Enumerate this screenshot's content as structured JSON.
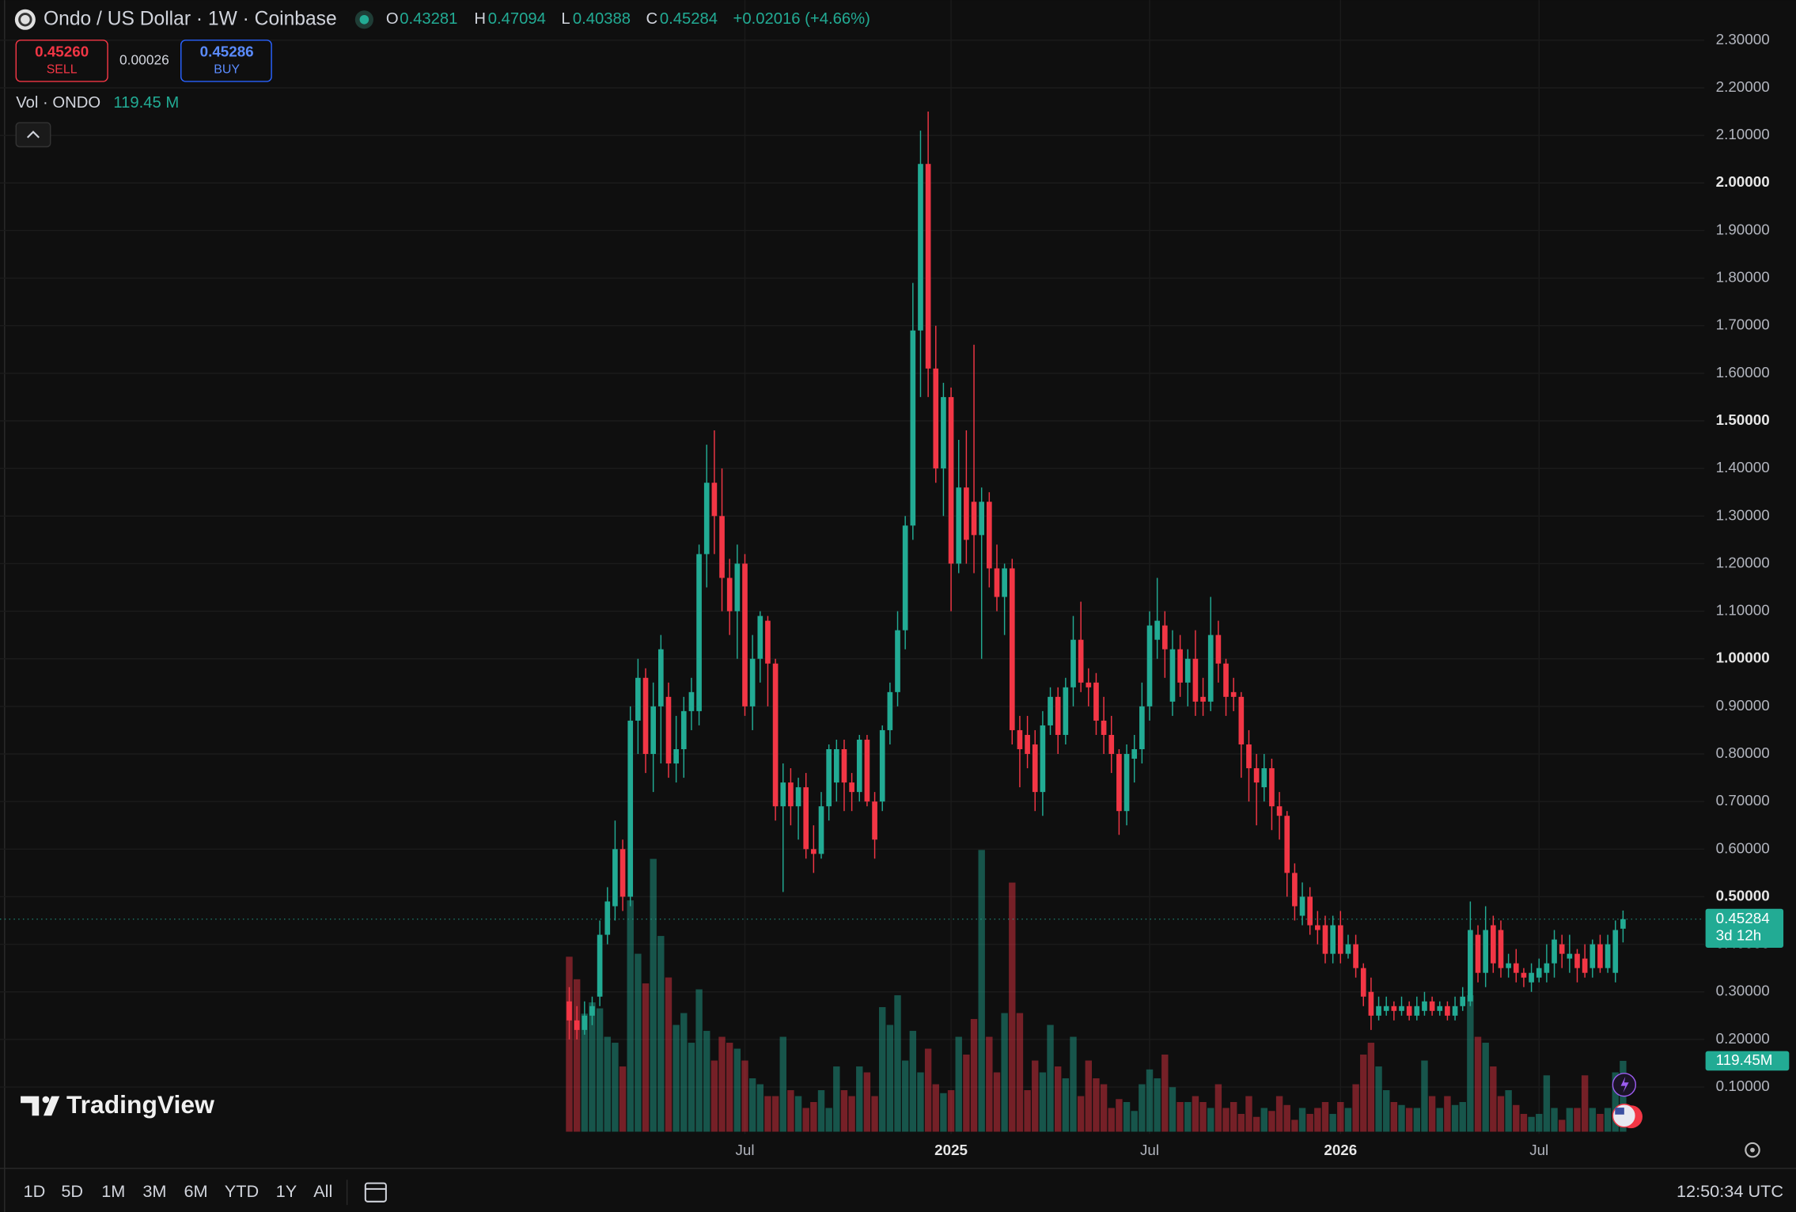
{
  "header": {
    "symbol": "Ondo / US Dollar · 1W · Coinbase",
    "o_label": "O",
    "o": "0.43281",
    "h_label": "H",
    "h": "0.47094",
    "l_label": "L",
    "l": "0.40388",
    "c_label": "C",
    "c": "0.45284",
    "change": "+0.02016 (+4.66%)",
    "sell_price": "0.45260",
    "sell": "SELL",
    "spread": "0.00026",
    "buy_price": "0.45286",
    "buy": "BUY",
    "vol_name": "Vol · ONDO",
    "vol_value": "119.45 M"
  },
  "logo": "TradingView",
  "range_buttons": [
    "1D",
    "5D",
    "1M",
    "3M",
    "6M",
    "YTD",
    "1Y",
    "All"
  ],
  "clock": "12:50:34 UTC",
  "chart_data": {
    "type": "candlestick",
    "up_color": "#22ab94",
    "down_color": "#f23645",
    "grid": true,
    "open": [
      0.28,
      0.24,
      0.22,
      0.25,
      0.29,
      0.42,
      0.48,
      0.6,
      0.5,
      0.87,
      0.96,
      0.8,
      0.9,
      0.92,
      0.78,
      0.81,
      0.89,
      0.89,
      1.22,
      1.37,
      1.3,
      1.17,
      1.1,
      1.2,
      0.9,
      1.0,
      1.08,
      0.99,
      0.69,
      0.74,
      0.69,
      0.73,
      0.6,
      0.59,
      0.69,
      0.74,
      0.81,
      0.74,
      0.72,
      0.83,
      0.7,
      0.7,
      0.85,
      0.93,
      1.06,
      1.28,
      1.69,
      2.04,
      1.61,
      1.4,
      1.55,
      1.2,
      1.36,
      1.33,
      1.26,
      1.33,
      1.19,
      1.13,
      1.19,
      0.85,
      0.84,
      0.82,
      0.72,
      0.86,
      0.92,
      0.84,
      0.94,
      1.04,
      0.95,
      0.95,
      0.87,
      0.84,
      0.8,
      0.68,
      0.79,
      0.81,
      0.9,
      1.04,
      1.07,
      0.91,
      1.02,
      0.95,
      1.0,
      0.92,
      0.91,
      1.05,
      0.99,
      0.93,
      0.92,
      0.82,
      0.77,
      0.73,
      0.77,
      0.69,
      0.67,
      0.55,
      0.46,
      0.5,
      0.44,
      0.44,
      0.38,
      0.44,
      0.38,
      0.4,
      0.35,
      0.3,
      0.25,
      0.26,
      0.27,
      0.26,
      0.27,
      0.25,
      0.26,
      0.28,
      0.26,
      0.27,
      0.25,
      0.27,
      0.28,
      0.42,
      0.34,
      0.44,
      0.43,
      0.35,
      0.36,
      0.34,
      0.32,
      0.33,
      0.34,
      0.36,
      0.4,
      0.37,
      0.38,
      0.37,
      0.35,
      0.4,
      0.35,
      0.34,
      0.43281
    ],
    "high": [
      0.31,
      0.27,
      0.28,
      0.29,
      0.45,
      0.52,
      0.66,
      0.62,
      0.9,
      1.0,
      0.98,
      0.95,
      1.05,
      0.95,
      0.88,
      0.92,
      0.96,
      1.24,
      1.45,
      1.48,
      1.4,
      1.21,
      1.24,
      1.22,
      1.05,
      1.1,
      1.09,
      1.0,
      0.78,
      0.77,
      0.75,
      0.76,
      0.65,
      0.72,
      0.82,
      0.83,
      0.83,
      0.76,
      0.84,
      0.84,
      0.72,
      0.86,
      0.95,
      1.1,
      1.3,
      1.79,
      2.11,
      2.15,
      1.7,
      1.58,
      1.57,
      1.46,
      1.48,
      1.66,
      1.36,
      1.35,
      1.24,
      1.2,
      1.21,
      0.88,
      0.88,
      0.85,
      0.89,
      0.94,
      0.94,
      0.96,
      1.09,
      1.12,
      0.98,
      0.97,
      0.92,
      0.88,
      0.81,
      0.82,
      0.84,
      0.95,
      1.1,
      1.17,
      1.1,
      1.06,
      1.05,
      1.02,
      1.06,
      0.96,
      1.13,
      1.08,
      1.0,
      0.96,
      0.93,
      0.85,
      0.8,
      0.8,
      0.79,
      0.72,
      0.68,
      0.57,
      0.53,
      0.52,
      0.47,
      0.46,
      0.46,
      0.47,
      0.42,
      0.42,
      0.36,
      0.33,
      0.29,
      0.29,
      0.28,
      0.29,
      0.28,
      0.29,
      0.3,
      0.29,
      0.28,
      0.28,
      0.29,
      0.31,
      0.49,
      0.44,
      0.48,
      0.46,
      0.45,
      0.38,
      0.39,
      0.35,
      0.36,
      0.37,
      0.4,
      0.43,
      0.42,
      0.42,
      0.39,
      0.4,
      0.41,
      0.42,
      0.42,
      0.45,
      0.47094
    ],
    "low": [
      0.2,
      0.2,
      0.21,
      0.23,
      0.27,
      0.4,
      0.45,
      0.47,
      0.48,
      0.8,
      0.76,
      0.72,
      0.78,
      0.75,
      0.74,
      0.75,
      0.85,
      0.86,
      1.15,
      1.22,
      1.1,
      1.05,
      1.0,
      0.88,
      0.85,
      0.95,
      0.9,
      0.66,
      0.51,
      0.65,
      0.62,
      0.58,
      0.55,
      0.58,
      0.66,
      0.7,
      0.68,
      0.68,
      0.7,
      0.69,
      0.58,
      0.68,
      0.82,
      0.9,
      1.02,
      1.25,
      1.55,
      1.55,
      1.37,
      1.3,
      1.1,
      1.18,
      1.2,
      1.18,
      1.0,
      1.15,
      1.1,
      1.05,
      0.82,
      0.73,
      0.77,
      0.68,
      0.67,
      0.84,
      0.8,
      0.82,
      0.9,
      0.93,
      0.9,
      0.84,
      0.8,
      0.76,
      0.63,
      0.65,
      0.74,
      0.78,
      0.87,
      1.0,
      0.96,
      0.88,
      0.92,
      0.9,
      0.88,
      0.88,
      0.89,
      0.95,
      0.88,
      0.89,
      0.75,
      0.7,
      0.65,
      0.7,
      0.64,
      0.62,
      0.5,
      0.45,
      0.44,
      0.42,
      0.4,
      0.36,
      0.36,
      0.36,
      0.37,
      0.33,
      0.27,
      0.22,
      0.24,
      0.25,
      0.24,
      0.25,
      0.24,
      0.24,
      0.25,
      0.25,
      0.25,
      0.24,
      0.24,
      0.26,
      0.27,
      0.32,
      0.31,
      0.34,
      0.33,
      0.33,
      0.32,
      0.31,
      0.3,
      0.32,
      0.32,
      0.33,
      0.35,
      0.34,
      0.32,
      0.33,
      0.33,
      0.34,
      0.34,
      0.32,
      0.40388
    ],
    "close": [
      0.24,
      0.22,
      0.25,
      0.27,
      0.42,
      0.49,
      0.6,
      0.5,
      0.87,
      0.96,
      0.8,
      0.9,
      1.02,
      0.78,
      0.81,
      0.89,
      0.93,
      1.22,
      1.37,
      1.3,
      1.17,
      1.1,
      1.2,
      0.9,
      1.0,
      1.09,
      0.99,
      0.69,
      0.74,
      0.69,
      0.73,
      0.6,
      0.59,
      0.69,
      0.81,
      0.81,
      0.74,
      0.72,
      0.83,
      0.7,
      0.62,
      0.85,
      0.93,
      1.06,
      1.28,
      1.69,
      2.04,
      1.61,
      1.4,
      1.55,
      1.2,
      1.36,
      1.25,
      1.26,
      1.33,
      1.19,
      1.13,
      1.19,
      0.85,
      0.81,
      0.8,
      0.72,
      0.86,
      0.92,
      0.84,
      0.94,
      1.04,
      0.95,
      0.94,
      0.87,
      0.84,
      0.8,
      0.68,
      0.8,
      0.81,
      0.9,
      1.07,
      1.08,
      1.02,
      1.02,
      0.95,
      1.0,
      0.91,
      0.91,
      1.05,
      0.99,
      0.92,
      0.92,
      0.82,
      0.77,
      0.74,
      0.77,
      0.69,
      0.67,
      0.55,
      0.48,
      0.5,
      0.44,
      0.43,
      0.38,
      0.44,
      0.38,
      0.4,
      0.35,
      0.29,
      0.25,
      0.27,
      0.27,
      0.26,
      0.27,
      0.25,
      0.27,
      0.28,
      0.26,
      0.27,
      0.25,
      0.27,
      0.29,
      0.43,
      0.34,
      0.43,
      0.36,
      0.35,
      0.36,
      0.34,
      0.33,
      0.34,
      0.35,
      0.36,
      0.41,
      0.38,
      0.38,
      0.35,
      0.34,
      0.4,
      0.35,
      0.4,
      0.43,
      0.45284
    ],
    "volume": [
      295,
      257,
      199,
      218,
      208,
      160,
      150,
      110,
      390,
      300,
      250,
      460,
      330,
      260,
      180,
      200,
      150,
      240,
      170,
      120,
      160,
      150,
      140,
      120,
      90,
      80,
      60,
      60,
      160,
      70,
      60,
      40,
      50,
      70,
      40,
      110,
      70,
      60,
      110,
      100,
      60,
      210,
      180,
      230,
      120,
      170,
      100,
      140,
      80,
      65,
      70,
      160,
      130,
      190,
      475,
      160,
      100,
      200,
      420,
      200,
      70,
      120,
      100,
      180,
      110,
      90,
      160,
      60,
      120,
      90,
      80,
      40,
      55,
      50,
      35,
      80,
      105,
      90,
      130,
      75,
      50,
      50,
      60,
      50,
      40,
      80,
      40,
      50,
      30,
      60,
      25,
      40,
      35,
      60,
      45,
      20,
      40,
      30,
      40,
      50,
      30,
      50,
      40,
      80,
      130,
      150,
      110,
      70,
      50,
      45,
      40,
      40,
      120,
      60,
      40,
      60,
      45,
      50,
      230,
      160,
      150,
      110,
      60,
      70,
      45,
      30,
      25,
      30,
      95,
      40,
      20,
      40,
      40,
      95,
      40,
      30,
      40,
      100,
      119.45
    ],
    "ylim": [
      0,
      2.3
    ],
    "yticks": [
      {
        "value": 0.1,
        "label": "0.10000"
      },
      {
        "value": 0.2,
        "label": "0.20000"
      },
      {
        "value": 0.3,
        "label": "0.30000"
      },
      {
        "value": 0.4,
        "label": "0.40000"
      },
      {
        "value": 0.5,
        "label": "0.50000"
      },
      {
        "value": 0.6,
        "label": "0.60000"
      },
      {
        "value": 0.7,
        "label": "0.70000"
      },
      {
        "value": 0.8,
        "label": "0.80000"
      },
      {
        "value": 0.9,
        "label": "0.90000"
      },
      {
        "value": 1,
        "label": "1.00000"
      },
      {
        "value": 1.1,
        "label": "1.10000"
      },
      {
        "value": 1.2,
        "label": "1.20000"
      },
      {
        "value": 1.3,
        "label": "1.30000"
      },
      {
        "value": 1.4,
        "label": "1.40000"
      },
      {
        "value": 1.5,
        "label": "1.50000"
      },
      {
        "value": 1.6,
        "label": "1.60000"
      },
      {
        "value": 1.7,
        "label": "1.70000"
      },
      {
        "value": 1.8,
        "label": "1.80000"
      },
      {
        "value": 1.9,
        "label": "1.90000"
      },
      {
        "value": 2,
        "label": "2.00000"
      },
      {
        "value": 2.1,
        "label": "2.10000"
      },
      {
        "value": 2.2,
        "label": "2.20000"
      },
      {
        "value": 2.3,
        "label": "2.30000"
      }
    ],
    "xticks": [
      {
        "value": 23,
        "label": "Jul"
      },
      {
        "value": 50,
        "label": "2025"
      },
      {
        "value": 76,
        "label": "Jul"
      },
      {
        "value": 101,
        "label": "2026"
      },
      {
        "value": 127,
        "label": "Jul"
      }
    ],
    "last_price_label": "0.45284",
    "countdown": "3d 12h",
    "volume_label": "119.45M"
  }
}
